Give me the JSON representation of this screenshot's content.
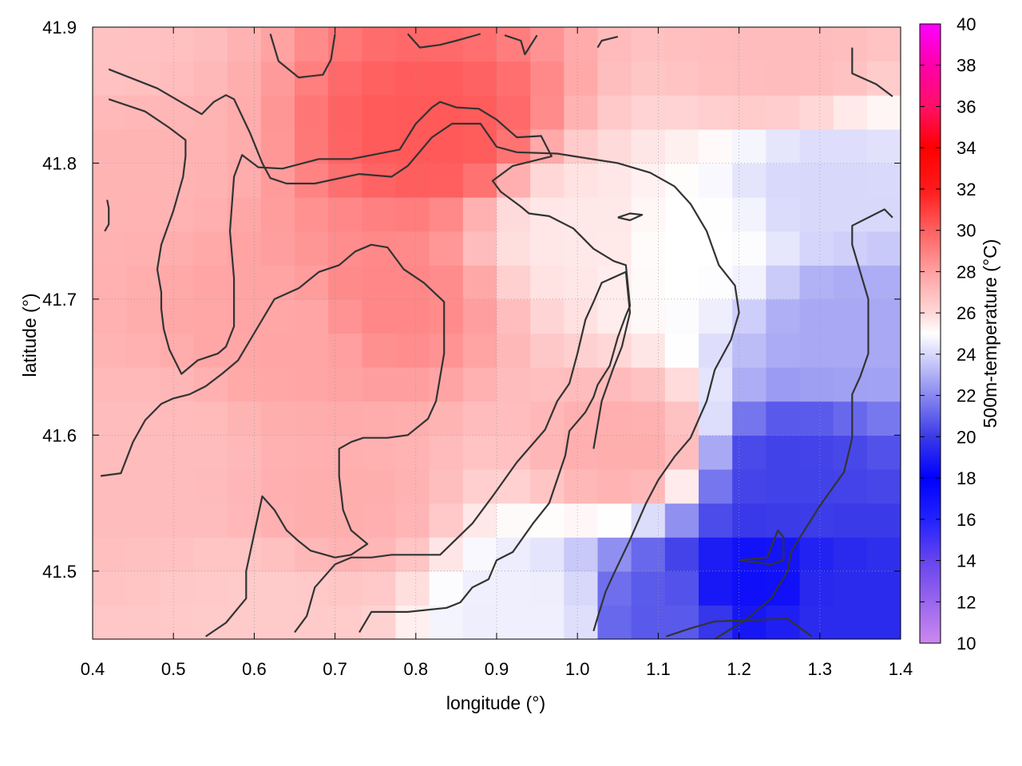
{
  "chart_data": {
    "type": "heatmap",
    "title": "",
    "xlabel": "longitude (°)",
    "ylabel": "latitude (°)",
    "colorbar_label": "500m-temperature (°C)",
    "xlim": [
      0.4,
      1.4
    ],
    "ylim": [
      41.45,
      41.9
    ],
    "x_ticks": [
      0.4,
      0.5,
      0.6,
      0.7,
      0.8,
      0.9,
      1.0,
      1.1,
      1.2,
      1.3,
      1.4
    ],
    "x_tick_labels": [
      "0.4",
      "0.5",
      "0.6",
      "0.7",
      "0.8",
      "0.9",
      "1.0",
      "1.1",
      "1.2",
      "1.3",
      "1.4"
    ],
    "y_ticks": [
      41.5,
      41.6,
      41.7,
      41.8,
      41.9
    ],
    "y_tick_labels": [
      "41.5",
      "41.6",
      "41.7",
      "41.8",
      "41.9"
    ],
    "colorbar_range": [
      10,
      40
    ],
    "colorbar_ticks": [
      10,
      12,
      14,
      16,
      18,
      20,
      22,
      24,
      26,
      28,
      30,
      32,
      34,
      36,
      38,
      40
    ],
    "colorbar_tick_labels": [
      "10",
      "12",
      "14",
      "16",
      "18",
      "20",
      "22",
      "24",
      "26",
      "28",
      "30",
      "32",
      "34",
      "36",
      "38",
      "40"
    ],
    "colormap": [
      {
        "value": 10,
        "color": "#cc88ee"
      },
      {
        "value": 12,
        "color": "#9966ee"
      },
      {
        "value": 14,
        "color": "#6644ee"
      },
      {
        "value": 16,
        "color": "#2222ff"
      },
      {
        "value": 18,
        "color": "#0000ff"
      },
      {
        "value": 20,
        "color": "#3a3ae8"
      },
      {
        "value": 22,
        "color": "#8888f0"
      },
      {
        "value": 24,
        "color": "#d8d8fb"
      },
      {
        "value": 25,
        "color": "#ffffff"
      },
      {
        "value": 26,
        "color": "#ffd8d8"
      },
      {
        "value": 28,
        "color": "#ffa0a0"
      },
      {
        "value": 30,
        "color": "#ff6060"
      },
      {
        "value": 32,
        "color": "#ff1a1a"
      },
      {
        "value": 34,
        "color": "#ff0000"
      },
      {
        "value": 36,
        "color": "#ff1066"
      },
      {
        "value": 38,
        "color": "#ff00aa"
      },
      {
        "value": 40,
        "color": "#ff00ff"
      }
    ],
    "grid": true,
    "field_centers": [
      {
        "lon": 0.82,
        "lat": 41.82,
        "temp": 30.2
      },
      {
        "lon": 0.76,
        "lat": 41.7,
        "temp": 28.8
      },
      {
        "lon": 0.65,
        "lat": 41.68,
        "temp": 27.8
      },
      {
        "lon": 0.45,
        "lat": 41.8,
        "temp": 27.3
      },
      {
        "lon": 0.48,
        "lat": 41.58,
        "temp": 27.0
      },
      {
        "lon": 0.7,
        "lat": 41.55,
        "temp": 27.5
      },
      {
        "lon": 1.06,
        "lat": 41.59,
        "temp": 27.5
      },
      {
        "lon": 1.25,
        "lat": 41.88,
        "temp": 27.0
      },
      {
        "lon": 1.0,
        "lat": 41.75,
        "temp": 25.6
      },
      {
        "lon": 1.15,
        "lat": 41.74,
        "temp": 25.0
      },
      {
        "lon": 1.3,
        "lat": 41.78,
        "temp": 24.0
      },
      {
        "lon": 1.33,
        "lat": 41.68,
        "temp": 22.8
      },
      {
        "lon": 1.26,
        "lat": 41.57,
        "temp": 20.2
      },
      {
        "lon": 1.22,
        "lat": 41.49,
        "temp": 18.5
      },
      {
        "lon": 1.1,
        "lat": 41.47,
        "temp": 20.8
      },
      {
        "lon": 1.32,
        "lat": 41.47,
        "temp": 19.5
      },
      {
        "lon": 0.95,
        "lat": 41.47,
        "temp": 24.6
      },
      {
        "lon": 0.62,
        "lat": 41.47,
        "temp": 26.5
      },
      {
        "lon": 0.4,
        "lat": 41.88,
        "temp": 26.8
      }
    ],
    "contours": [
      {
        "level": "outer",
        "points": [
          [
            0.42,
            41.869
          ],
          [
            0.48,
            41.855
          ],
          [
            0.535,
            41.836
          ],
          [
            0.55,
            41.845
          ],
          [
            0.565,
            41.85
          ],
          [
            0.575,
            41.847
          ],
          [
            0.595,
            41.822
          ],
          [
            0.61,
            41.8
          ],
          [
            0.62,
            41.789
          ],
          [
            0.64,
            41.785
          ],
          [
            0.675,
            41.785
          ],
          [
            0.73,
            41.792
          ],
          [
            0.77,
            41.79
          ],
          [
            0.79,
            41.798
          ],
          [
            0.82,
            41.819
          ],
          [
            0.845,
            41.829
          ],
          [
            0.88,
            41.829
          ],
          [
            0.9,
            41.812
          ],
          [
            0.925,
            41.808
          ],
          [
            0.975,
            41.807
          ],
          [
            1.05,
            41.8
          ],
          [
            1.09,
            41.793
          ],
          [
            1.12,
            41.783
          ],
          [
            1.14,
            41.77
          ],
          [
            1.16,
            41.75
          ],
          [
            1.175,
            41.725
          ],
          [
            1.195,
            41.71
          ],
          [
            1.2,
            41.69
          ],
          [
            1.19,
            41.67
          ],
          [
            1.17,
            41.648
          ],
          [
            1.16,
            41.625
          ],
          [
            1.14,
            41.598
          ],
          [
            1.12,
            41.584
          ],
          [
            1.1,
            41.567
          ],
          [
            1.085,
            41.55
          ],
          [
            1.065,
            41.523
          ],
          [
            1.045,
            41.498
          ],
          [
            1.035,
            41.485
          ],
          [
            1.025,
            41.466
          ],
          [
            1.02,
            41.456
          ]
        ]
      },
      {
        "level": "inner",
        "points": [
          [
            0.42,
            41.847
          ],
          [
            0.465,
            41.838
          ],
          [
            0.495,
            41.826
          ],
          [
            0.515,
            41.817
          ],
          [
            0.515,
            41.805
          ],
          [
            0.512,
            41.79
          ],
          [
            0.5,
            41.765
          ],
          [
            0.485,
            41.74
          ],
          [
            0.48,
            41.722
          ],
          [
            0.485,
            41.705
          ],
          [
            0.485,
            41.693
          ],
          [
            0.488,
            41.678
          ],
          [
            0.495,
            41.663
          ],
          [
            0.51,
            41.645
          ],
          [
            0.53,
            41.655
          ],
          [
            0.555,
            41.66
          ],
          [
            0.565,
            41.665
          ],
          [
            0.575,
            41.68
          ],
          [
            0.575,
            41.715
          ],
          [
            0.57,
            41.75
          ],
          [
            0.575,
            41.79
          ],
          [
            0.585,
            41.806
          ],
          [
            0.605,
            41.797
          ],
          [
            0.635,
            41.796
          ],
          [
            0.68,
            41.803
          ],
          [
            0.72,
            41.803
          ],
          [
            0.78,
            41.81
          ],
          [
            0.8,
            41.829
          ],
          [
            0.82,
            41.841
          ],
          [
            0.83,
            41.845
          ],
          [
            0.85,
            41.841
          ],
          [
            0.878,
            41.84
          ],
          [
            0.9,
            41.832
          ],
          [
            0.925,
            41.819
          ],
          [
            0.955,
            41.82
          ],
          [
            0.968,
            41.805
          ],
          [
            0.92,
            41.798
          ],
          [
            0.895,
            41.787
          ],
          [
            0.905,
            41.779
          ],
          [
            0.93,
            41.768
          ],
          [
            0.94,
            41.763
          ],
          [
            0.965,
            41.761
          ],
          [
            0.995,
            41.752
          ],
          [
            1.02,
            41.737
          ],
          [
            1.045,
            41.728
          ],
          [
            1.06,
            41.725
          ],
          [
            1.065,
            41.695
          ],
          [
            1.06,
            41.688
          ],
          [
            1.05,
            41.672
          ],
          [
            1.04,
            41.651
          ],
          [
            1.025,
            41.637
          ],
          [
            1.02,
            41.628
          ],
          [
            1.01,
            41.617
          ],
          [
            0.99,
            41.603
          ],
          [
            0.985,
            41.585
          ],
          [
            0.965,
            41.55
          ],
          [
            0.945,
            41.535
          ],
          [
            0.92,
            41.514
          ],
          [
            0.9,
            41.508
          ],
          [
            0.89,
            41.494
          ],
          [
            0.87,
            41.488
          ],
          [
            0.855,
            41.477
          ],
          [
            0.838,
            41.473
          ],
          [
            0.79,
            41.47
          ],
          [
            0.745,
            41.47
          ],
          [
            0.73,
            41.455
          ]
        ]
      },
      {
        "level": "core",
        "points": [
          [
            0.41,
            41.57
          ],
          [
            0.435,
            41.572
          ],
          [
            0.45,
            41.595
          ],
          [
            0.465,
            41.611
          ],
          [
            0.485,
            41.623
          ],
          [
            0.5,
            41.627
          ],
          [
            0.52,
            41.63
          ],
          [
            0.54,
            41.636
          ],
          [
            0.56,
            41.645
          ],
          [
            0.58,
            41.655
          ],
          [
            0.6,
            41.675
          ],
          [
            0.625,
            41.7
          ],
          [
            0.655,
            41.708
          ],
          [
            0.68,
            41.72
          ],
          [
            0.705,
            41.725
          ],
          [
            0.725,
            41.735
          ],
          [
            0.745,
            41.74
          ],
          [
            0.765,
            41.738
          ],
          [
            0.785,
            41.722
          ],
          [
            0.81,
            41.712
          ],
          [
            0.835,
            41.698
          ],
          [
            0.835,
            41.66
          ],
          [
            0.825,
            41.625
          ],
          [
            0.815,
            41.612
          ],
          [
            0.79,
            41.6
          ],
          [
            0.765,
            41.598
          ],
          [
            0.735,
            41.598
          ],
          [
            0.72,
            41.595
          ],
          [
            0.705,
            41.59
          ],
          [
            0.705,
            41.57
          ],
          [
            0.71,
            41.545
          ],
          [
            0.72,
            41.53
          ],
          [
            0.73,
            41.525
          ],
          [
            0.74,
            41.52
          ],
          [
            0.72,
            41.512
          ],
          [
            0.7,
            41.51
          ],
          [
            0.67,
            41.515
          ],
          [
            0.655,
            41.522
          ],
          [
            0.64,
            41.53
          ],
          [
            0.625,
            41.545
          ],
          [
            0.61,
            41.555
          ],
          [
            0.59,
            41.5
          ],
          [
            0.59,
            41.48
          ],
          [
            0.565,
            41.462
          ],
          [
            0.54,
            41.452
          ]
        ]
      },
      {
        "level": "core2",
        "points": [
          [
            0.65,
            41.455
          ],
          [
            0.665,
            41.467
          ],
          [
            0.675,
            41.488
          ],
          [
            0.7,
            41.505
          ],
          [
            0.72,
            41.51
          ],
          [
            0.745,
            41.51
          ],
          [
            0.77,
            41.512
          ],
          [
            0.83,
            41.512
          ],
          [
            0.87,
            41.535
          ],
          [
            0.895,
            41.555
          ],
          [
            0.925,
            41.58
          ],
          [
            0.96,
            41.604
          ],
          [
            0.975,
            41.625
          ],
          [
            0.99,
            41.638
          ],
          [
            1.0,
            41.66
          ],
          [
            1.01,
            41.685
          ],
          [
            1.02,
            41.698
          ],
          [
            1.03,
            41.712
          ],
          [
            1.06,
            41.72
          ],
          [
            1.065,
            41.69
          ],
          [
            1.055,
            41.665
          ],
          [
            1.045,
            41.65
          ],
          [
            1.03,
            41.625
          ],
          [
            1.02,
            41.59
          ]
        ]
      },
      {
        "level": "south_east",
        "points": [
          [
            1.11,
            41.452
          ],
          [
            1.14,
            41.458
          ],
          [
            1.17,
            41.463
          ],
          [
            1.26,
            41.465
          ],
          [
            1.29,
            41.452
          ]
        ]
      },
      {
        "level": "blob_south_east",
        "points": [
          [
            1.2,
            41.508
          ],
          [
            1.24,
            41.505
          ],
          [
            1.255,
            41.508
          ],
          [
            1.255,
            41.525
          ],
          [
            1.248,
            41.53
          ],
          [
            1.235,
            41.51
          ],
          [
            1.2,
            41.508
          ]
        ]
      },
      {
        "level": "north_small_1",
        "points": [
          [
            0.62,
            41.895
          ],
          [
            0.63,
            41.875
          ],
          [
            0.655,
            41.863
          ],
          [
            0.685,
            41.865
          ],
          [
            0.695,
            41.876
          ],
          [
            0.7,
            41.895
          ]
        ]
      },
      {
        "level": "north_small_2",
        "points": [
          [
            0.79,
            41.895
          ],
          [
            0.805,
            41.885
          ],
          [
            0.83,
            41.887
          ],
          [
            0.85,
            41.89
          ],
          [
            0.88,
            41.895
          ]
        ]
      },
      {
        "level": "north_small_3",
        "points": [
          [
            0.91,
            41.894
          ],
          [
            0.93,
            41.89
          ],
          [
            0.935,
            41.88
          ],
          [
            0.95,
            41.894
          ]
        ]
      },
      {
        "level": "north_small_4",
        "points": [
          [
            1.025,
            41.885
          ],
          [
            1.03,
            41.89
          ],
          [
            1.05,
            41.893
          ]
        ]
      },
      {
        "level": "north_east",
        "points": [
          [
            1.34,
            41.885
          ],
          [
            1.34,
            41.866
          ],
          [
            1.37,
            41.858
          ],
          [
            1.39,
            41.849
          ]
        ]
      },
      {
        "level": "east_line",
        "points": [
          [
            1.17,
            41.45
          ],
          [
            1.21,
            41.465
          ],
          [
            1.24,
            41.48
          ],
          [
            1.26,
            41.5
          ],
          [
            1.265,
            41.515
          ],
          [
            1.3,
            41.548
          ],
          [
            1.33,
            41.573
          ],
          [
            1.34,
            41.598
          ],
          [
            1.34,
            41.63
          ],
          [
            1.35,
            41.643
          ],
          [
            1.36,
            41.66
          ],
          [
            1.36,
            41.7
          ],
          [
            1.35,
            41.72
          ],
          [
            1.34,
            41.74
          ],
          [
            1.34,
            41.754
          ],
          [
            1.38,
            41.766
          ],
          [
            1.39,
            41.76
          ]
        ]
      },
      {
        "level": "west_small",
        "points": [
          [
            0.418,
            41.773
          ],
          [
            0.42,
            41.767
          ],
          [
            0.42,
            41.755
          ],
          [
            0.415,
            41.75
          ]
        ]
      },
      {
        "level": "east_loop",
        "points": [
          [
            1.05,
            41.76
          ],
          [
            1.065,
            41.763
          ],
          [
            1.08,
            41.762
          ],
          [
            1.065,
            41.758
          ],
          [
            1.05,
            41.76
          ]
        ]
      }
    ]
  }
}
